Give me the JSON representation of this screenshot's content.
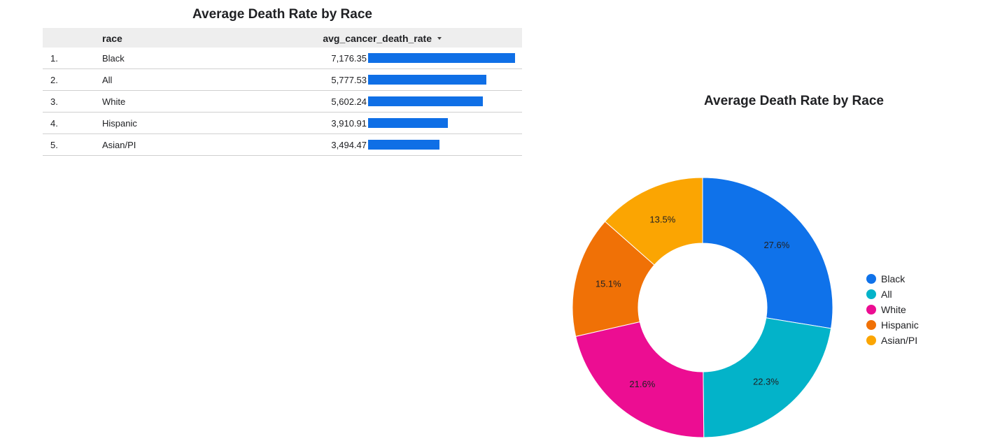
{
  "chart_data": [
    {
      "type": "table",
      "title": "Average Death Rate by Race",
      "columns": [
        "race",
        "avg_cancer_death_rate"
      ],
      "sort_icon": "sort-descending-icon",
      "rows": [
        {
          "index": "1.",
          "race": "Black",
          "value": 7176.35,
          "value_label": "7,176.35"
        },
        {
          "index": "2.",
          "race": "All",
          "value": 5777.53,
          "value_label": "5,777.53"
        },
        {
          "index": "3.",
          "race": "White",
          "value": 5602.24,
          "value_label": "5,602.24"
        },
        {
          "index": "4.",
          "race": "Hispanic",
          "value": 3910.91,
          "value_label": "3,910.91"
        },
        {
          "index": "5.",
          "race": "Asian/PI",
          "value": 3494.47,
          "value_label": "3,494.47"
        }
      ],
      "bar_color": "#0f6fe6"
    },
    {
      "type": "pie",
      "title": "Average Death Rate by Race",
      "legend_position": "right",
      "slices": [
        {
          "name": "Black",
          "value": 27.6,
          "label": "27.6%",
          "color": "#0f72ea"
        },
        {
          "name": "All",
          "value": 22.3,
          "label": "22.3%",
          "color": "#03b3c9"
        },
        {
          "name": "White",
          "value": 21.6,
          "label": "21.6%",
          "color": "#ec0d92"
        },
        {
          "name": "Hispanic",
          "value": 15.1,
          "label": "15.1%",
          "color": "#f07106"
        },
        {
          "name": "Asian/PI",
          "value": 13.5,
          "label": "13.5%",
          "color": "#fba502"
        }
      ]
    }
  ]
}
